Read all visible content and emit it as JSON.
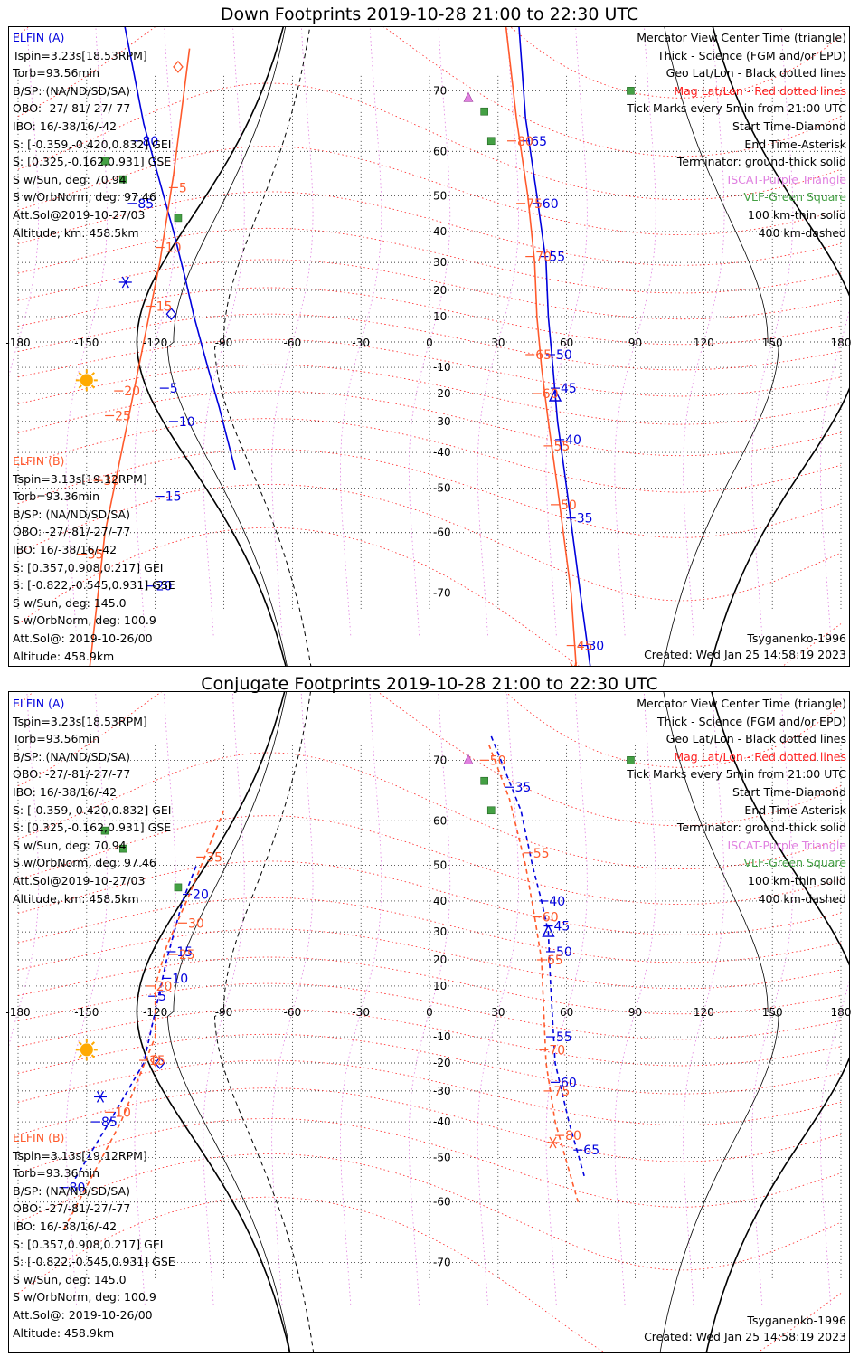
{
  "panels": [
    {
      "id": "down",
      "title": "Down Footprints 2019-10-28 21:00 to 22:30 UTC",
      "elfin_a": {
        "name": "ELFIN (A)",
        "lines": [
          "Tspin=3.23s[18.53RPM]",
          "Torb=93.56min",
          "B/SP: (NA/ND/SD/SA)",
          "OBO: -27/-81/-27/-77",
          "IBO: 16/-38/16/-42",
          "S: [-0.359,-0.420,0.832] GEI",
          "S: [0.325,-0.162,0.931] GSE",
          "S w/Sun, deg: 70.94",
          "S w/OrbNorm, deg: 97.46",
          "Att.Sol@2019-10-27/03",
          "Altitude, km: 458.5km"
        ]
      },
      "elfin_b": {
        "name": "ELFIN (B)",
        "lines": [
          "Tspin=3.13s[19.12RPM]",
          "Torb=93.36min",
          "B/SP: (NA/ND/SD/SA)",
          "OBO: -27/-81/-27/-77",
          "IBO: 16/-38/16/-42",
          "S: [0.357,0.908,0.217] GEI",
          "S: [-0.822,-0.545,0.931] GSE",
          "S w/Sun, deg: 145.0",
          "S w/OrbNorm, deg: 100.9",
          "Att.Sol@: 2019-10-26/00",
          "Altitude: 458.9km"
        ]
      },
      "model": "Tsyganenko-1996",
      "created": "Created: Wed Jan 25 14:58:19 2023"
    },
    {
      "id": "conjugate",
      "title": "Conjugate Footprints 2019-10-28 21:00 to 22:30 UTC",
      "elfin_a": {
        "name": "ELFIN (A)",
        "lines": [
          "Tspin=3.23s[18.53RPM]",
          "Torb=93.56min",
          "B/SP: (NA/ND/SD/SA)",
          "OBO: -27/-81/-27/-77",
          "IBO: 16/-38/16/-42",
          "S: [-0.359,-0.420,0.832] GEI",
          "S: [0.325,-0.162,0.931] GSE",
          "S w/Sun, deg: 70.94",
          "S w/OrbNorm, deg: 97.46",
          "Att.Sol@2019-10-27/03",
          "Altitude, km: 458.5km"
        ]
      },
      "elfin_b": {
        "name": "ELFIN (B)",
        "lines": [
          "Tspin=3.13s[19.12RPM]",
          "Torb=93.36min",
          "B/SP: (NA/ND/SD/SA)",
          "OBO: -27/-81/-27/-77",
          "IBO: 16/-38/16/-42",
          "S: [0.357,0.908,0.217] GEI",
          "S: [-0.822,-0.545,0.931] GSE",
          "S w/Sun, deg: 145.0",
          "S w/OrbNorm, deg: 100.9",
          "Att.Sol@: 2019-10-26/00",
          "Altitude: 458.9km"
        ]
      },
      "model": "Tsyganenko-1996",
      "created": "Created: Wed Jan 25 14:58:19 2023"
    }
  ],
  "legend": [
    {
      "text": "Mercator View Center Time (triangle)",
      "color": "#000000"
    },
    {
      "text": "Thick - Science (FGM and/or EPD)",
      "color": "#000000"
    },
    {
      "text": "Geo Lat/Lon - Black dotted lines",
      "color": "#000000"
    },
    {
      "text": "Mag Lat/Lon - Red dotted lines",
      "color": "#ff2020"
    },
    {
      "text": "Tick Marks every 5min from 21:00 UTC",
      "color": "#000000"
    },
    {
      "text": "Start Time-Diamond",
      "color": "#000000"
    },
    {
      "text": "End Time-Asterisk",
      "color": "#000000"
    },
    {
      "text": "Terminator: ground-thick solid",
      "color": "#000000"
    },
    {
      "text": "ISCAT-Purple Triangle",
      "color": "#e080e0"
    },
    {
      "text": "VLF-Green Square",
      "color": "#44a044"
    },
    {
      "text": "100 km-thin solid",
      "color": "#000000"
    },
    {
      "text": "400 km-dashed",
      "color": "#000000"
    }
  ],
  "colors": {
    "elfin_a": "#0000dd",
    "elfin_b": "#ff5a2c",
    "mag_grid": "#ff2020",
    "geo_grid": "#000000",
    "iscat": "#e080e0",
    "vlf": "#44a044"
  },
  "chart_data": [
    {
      "type": "scatter",
      "projection": "mercator",
      "panel": "down",
      "title": "Down Footprints 2019-10-28 21:00 to 22:30 UTC",
      "lon_ticks": [
        -180,
        -150,
        -120,
        -90,
        -60,
        -30,
        0,
        30,
        60,
        90,
        120,
        150,
        180
      ],
      "lat_ticks": [
        70,
        60,
        50,
        40,
        30,
        20,
        10,
        0,
        -10,
        -20,
        -30,
        -40,
        -50,
        -60,
        -70
      ],
      "xlim": [
        -180,
        180
      ],
      "ylim": [
        -80,
        80
      ],
      "series": [
        {
          "name": "ELFIN (A)",
          "color": "#0000dd",
          "points": [
            {
              "lon": -145,
              "lat": 85
            },
            {
              "lon": -125,
              "lat": 65
            },
            {
              "lon": -112,
              "lat": 40
            },
            {
              "lon": -107,
              "lat": 25
            },
            {
              "lon": -103,
              "lat": 10
            },
            {
              "lon": -100,
              "lat": 0
            },
            {
              "lon": -97,
              "lat": -10
            },
            {
              "lon": -92,
              "lat": -25
            },
            {
              "lon": -85,
              "lat": -45
            }
          ],
          "ticks": [
            {
              "label": "80",
              "lon": -128,
              "lat": 62
            },
            {
              "label": "85",
              "lon": -130,
              "lat": 48
            },
            {
              "label": "5",
              "lon": -116,
              "lat": -18
            },
            {
              "label": "10",
              "lon": -112,
              "lat": -30
            },
            {
              "label": "15",
              "lon": -118,
              "lat": -52
            },
            {
              "label": "20",
              "lon": -122,
              "lat": -69
            }
          ],
          "start": {
            "lon": -113,
            "lat": 11
          },
          "end": {
            "lon": -133,
            "lat": 23
          }
        },
        {
          "name": "ELFIN (A) 21:45-22:30",
          "color": "#0000dd",
          "points": [
            {
              "lon": 37,
              "lat": 82
            },
            {
              "lon": 42,
              "lat": 66
            },
            {
              "lon": 47,
              "lat": 50
            },
            {
              "lon": 51,
              "lat": 30
            },
            {
              "lon": 52,
              "lat": 10
            },
            {
              "lon": 54,
              "lat": -10
            },
            {
              "lon": 56,
              "lat": -30
            },
            {
              "lon": 60,
              "lat": -50
            },
            {
              "lon": 66,
              "lat": -70
            },
            {
              "lon": 72,
              "lat": -80
            }
          ],
          "ticks": [
            {
              "label": "65",
              "lon": 42,
              "lat": 62
            },
            {
              "label": "60",
              "lon": 47,
              "lat": 48
            },
            {
              "label": "55",
              "lon": 50,
              "lat": 32
            },
            {
              "label": "50",
              "lon": 53,
              "lat": -5
            },
            {
              "label": "45",
              "lon": 55,
              "lat": -18
            },
            {
              "label": "40",
              "lon": 57,
              "lat": -36
            },
            {
              "label": "35",
              "lon": 62,
              "lat": -57
            },
            {
              "label": "30",
              "lon": 67,
              "lat": -76
            }
          ],
          "center": {
            "lon": 55,
            "lat": -21
          }
        },
        {
          "name": "ELFIN (B)",
          "color": "#ff5a2c",
          "points": [
            {
              "lon": -105,
              "lat": 75
            },
            {
              "lon": -112,
              "lat": 55
            },
            {
              "lon": -118,
              "lat": 30
            },
            {
              "lon": -125,
              "lat": 0
            },
            {
              "lon": -132,
              "lat": -30
            },
            {
              "lon": -142,
              "lat": -60
            },
            {
              "lon": -150,
              "lat": -80
            }
          ],
          "ticks": [
            {
              "label": "5",
              "lon": -112,
              "lat": 52
            },
            {
              "label": "10",
              "lon": -118,
              "lat": 35
            },
            {
              "label": "15",
              "lon": -122,
              "lat": 14
            },
            {
              "label": "20",
              "lon": -136,
              "lat": -19
            },
            {
              "label": "25",
              "lon": -140,
              "lat": -28
            },
            {
              "label": "30",
              "lon": -145,
              "lat": -48
            },
            {
              "label": "35",
              "lon": -152,
              "lat": -64
            }
          ],
          "start": {
            "lon": -110,
            "lat": 73
          }
        },
        {
          "name": "ELFIN (B) 21:45-22:30",
          "color": "#ff5a2c",
          "points": [
            {
              "lon": 30,
              "lat": 82
            },
            {
              "lon": 38,
              "lat": 66
            },
            {
              "lon": 43,
              "lat": 50
            },
            {
              "lon": 46,
              "lat": 30
            },
            {
              "lon": 47,
              "lat": 10
            },
            {
              "lon": 49,
              "lat": -10
            },
            {
              "lon": 52,
              "lat": -30
            },
            {
              "lon": 56,
              "lat": -50
            },
            {
              "lon": 62,
              "lat": -70
            },
            {
              "lon": 65,
              "lat": -80
            }
          ],
          "ticks": [
            {
              "label": "85",
              "lon": 30,
              "lat": 81
            },
            {
              "label": "80",
              "lon": 36,
              "lat": 62
            },
            {
              "label": "75",
              "lon": 40,
              "lat": 48
            },
            {
              "label": "70",
              "lon": 44,
              "lat": 32
            },
            {
              "label": "65",
              "lon": 44,
              "lat": -5
            },
            {
              "label": "60",
              "lon": 47,
              "lat": -20
            },
            {
              "label": "55",
              "lon": 52,
              "lat": -38
            },
            {
              "label": "50",
              "lon": 55,
              "lat": -54
            },
            {
              "label": "45",
              "lon": 62,
              "lat": -76
            }
          ],
          "end": {
            "lon": 63,
            "lat": -78
          }
        }
      ],
      "iscat": [
        {
          "lon": 15,
          "lat": 78
        },
        {
          "lon": 17,
          "lat": 69
        }
      ],
      "vlf": [
        {
          "lon": -142,
          "lat": 58
        },
        {
          "lon": -134,
          "lat": 54
        },
        {
          "lon": -110,
          "lat": 44
        },
        {
          "lon": 24,
          "lat": 67
        },
        {
          "lon": 27,
          "lat": 62
        },
        {
          "lon": 88,
          "lat": 70
        }
      ]
    },
    {
      "type": "scatter",
      "projection": "mercator",
      "panel": "conjugate",
      "title": "Conjugate Footprints 2019-10-28 21:00 to 22:30 UTC",
      "lon_ticks": [
        -180,
        -150,
        -120,
        -90,
        -60,
        -30,
        0,
        30,
        60,
        90,
        120,
        150,
        180
      ],
      "lat_ticks": [
        70,
        60,
        50,
        40,
        30,
        20,
        10,
        0,
        -10,
        -20,
        -30,
        -40,
        -50,
        -60,
        -70
      ],
      "xlim": [
        -180,
        180
      ],
      "ylim": [
        -80,
        80
      ],
      "series": [
        {
          "name": "ELFIN (A)",
          "color": "#0000dd",
          "points": [
            {
              "lon": -155,
              "lat": -55
            },
            {
              "lon": -140,
              "lat": -40
            },
            {
              "lon": -125,
              "lat": -20
            },
            {
              "lon": -120,
              "lat": 0
            },
            {
              "lon": -115,
              "lat": 20
            },
            {
              "lon": -108,
              "lat": 40
            },
            {
              "lon": -102,
              "lat": 50
            }
          ],
          "ticks": [
            {
              "label": "80",
              "lon": -160,
              "lat": -57
            },
            {
              "label": "85",
              "lon": -146,
              "lat": -40
            },
            {
              "label": "5",
              "lon": -121,
              "lat": 6
            },
            {
              "label": "10",
              "lon": -115,
              "lat": 13
            },
            {
              "label": "15",
              "lon": -113,
              "lat": 23
            },
            {
              "label": "20",
              "lon": -106,
              "lat": 42
            }
          ],
          "start": {
            "lon": -118,
            "lat": -20
          },
          "end": {
            "lon": -144,
            "lat": -32
          }
        },
        {
          "name": "ELFIN (A) 21:45-22:30",
          "color": "#0000dd",
          "points": [
            {
              "lon": 27,
              "lat": 73
            },
            {
              "lon": 40,
              "lat": 62
            },
            {
              "lon": 45,
              "lat": 50
            },
            {
              "lon": 49,
              "lat": 40
            },
            {
              "lon": 52,
              "lat": 30
            },
            {
              "lon": 53,
              "lat": 10
            },
            {
              "lon": 55,
              "lat": -20
            },
            {
              "lon": 61,
              "lat": -40
            },
            {
              "lon": 68,
              "lat": -55
            }
          ],
          "ticks": [
            {
              "label": "35",
              "lon": 35,
              "lat": 66
            },
            {
              "label": "40",
              "lon": 50,
              "lat": 40
            },
            {
              "label": "45",
              "lon": 52,
              "lat": 32
            },
            {
              "label": "50",
              "lon": 53,
              "lat": 23
            },
            {
              "label": "55",
              "lon": 53,
              "lat": -10
            },
            {
              "label": "60",
              "lon": 55,
              "lat": -27
            },
            {
              "label": "65",
              "lon": 65,
              "lat": -48
            }
          ],
          "center": {
            "lon": 52,
            "lat": 30
          }
        },
        {
          "name": "ELFIN (B)",
          "color": "#ff5a2c",
          "points": [
            {
              "lon": -90,
              "lat": 62
            },
            {
              "lon": -105,
              "lat": 42
            },
            {
              "lon": -115,
              "lat": 25
            },
            {
              "lon": -120,
              "lat": 10
            },
            {
              "lon": -120,
              "lat": -10
            },
            {
              "lon": -135,
              "lat": -40
            },
            {
              "lon": -160,
              "lat": -65
            }
          ],
          "ticks": [
            {
              "label": "35",
              "lon": -100,
              "lat": 52
            },
            {
              "label": "30",
              "lon": -108,
              "lat": 33
            },
            {
              "label": "25",
              "lon": -112,
              "lat": 22
            },
            {
              "label": "20",
              "lon": -122,
              "lat": 10
            },
            {
              "label": "15",
              "lon": -125,
              "lat": -19
            },
            {
              "label": "10",
              "lon": -140,
              "lat": -37
            }
          ],
          "start": {
            "lon": -120,
            "lat": -19
          }
        },
        {
          "name": "ELFIN (B) 21:45-22:30",
          "color": "#ff5a2c",
          "points": [
            {
              "lon": 26,
              "lat": 72
            },
            {
              "lon": 35,
              "lat": 64
            },
            {
              "lon": 42,
              "lat": 50
            },
            {
              "lon": 46,
              "lat": 35
            },
            {
              "lon": 49,
              "lat": 20
            },
            {
              "lon": 50,
              "lat": 0
            },
            {
              "lon": 51,
              "lat": -20
            },
            {
              "lon": 55,
              "lat": -40
            },
            {
              "lon": 65,
              "lat": -60
            }
          ],
          "ticks": [
            {
              "label": "50",
              "lon": 24,
              "lat": 70
            },
            {
              "label": "55",
              "lon": 43,
              "lat": 53
            },
            {
              "label": "60",
              "lon": 47,
              "lat": 35
            },
            {
              "label": "65",
              "lon": 49,
              "lat": 20
            },
            {
              "label": "70",
              "lon": 50,
              "lat": -15
            },
            {
              "label": "75",
              "lon": 52,
              "lat": -30
            },
            {
              "label": "80",
              "lon": 57,
              "lat": -44
            }
          ],
          "end": {
            "lon": 54,
            "lat": -46
          }
        }
      ],
      "iscat": [
        {
          "lon": 15,
          "lat": 78
        },
        {
          "lon": 17,
          "lat": 70
        }
      ],
      "vlf": [
        {
          "lon": -142,
          "lat": 58
        },
        {
          "lon": -134,
          "lat": 54
        },
        {
          "lon": -110,
          "lat": 44
        },
        {
          "lon": 24,
          "lat": 67
        },
        {
          "lon": 27,
          "lat": 62
        },
        {
          "lon": 88,
          "lat": 70
        }
      ]
    }
  ]
}
